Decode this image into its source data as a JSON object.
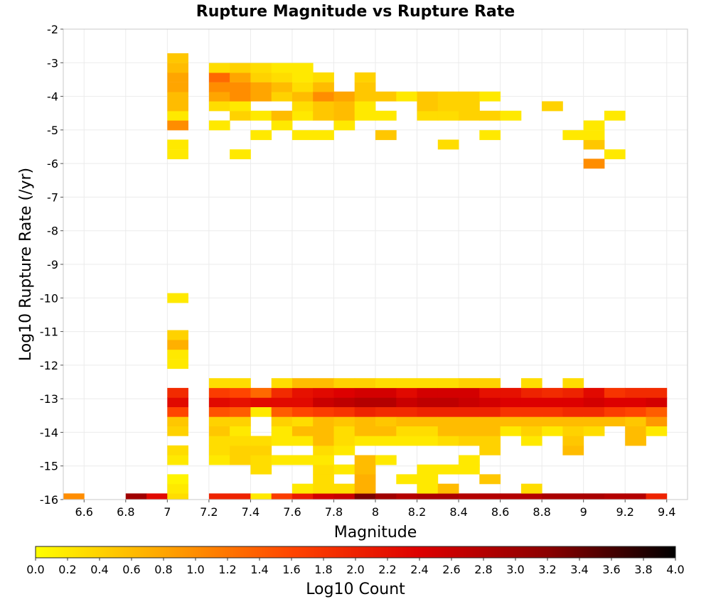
{
  "chart_data": {
    "type": "heatmap",
    "title": "Rupture Magnitude vs Rupture Rate",
    "xlabel": "Magnitude",
    "ylabel": "Log10 Rupture Rate (/yr)",
    "xlim": [
      6.5,
      9.5
    ],
    "ylim": [
      -16,
      -2
    ],
    "x_ticks": [
      "6.6",
      "6.8",
      "7",
      "7.2",
      "7.4",
      "7.6",
      "7.8",
      "8",
      "8.2",
      "8.4",
      "8.6",
      "8.8",
      "9",
      "9.2",
      "9.4"
    ],
    "y_ticks": [
      "-2",
      "-3",
      "-4",
      "-5",
      "-6",
      "-7",
      "-8",
      "-9",
      "-10",
      "-11",
      "-12",
      "-13",
      "-14",
      "-15",
      "-16"
    ],
    "x_bin_width": 0.1,
    "y_bin_height": 0.285,
    "grid": true,
    "colorbar": {
      "label": "Log10 Count",
      "range": [
        0.0,
        4.0
      ],
      "ticks": [
        "0.0",
        "0.2",
        "0.4",
        "0.6",
        "0.8",
        "1.0",
        "1.2",
        "1.4",
        "1.6",
        "1.8",
        "2.0",
        "2.2",
        "2.4",
        "2.6",
        "2.8",
        "3.0",
        "3.2",
        "3.4",
        "3.6",
        "3.8",
        "4.0"
      ],
      "placement": "bottom",
      "colormap": [
        "#ffff00",
        "#ffa500",
        "#ff4500",
        "#dd0000",
        "#8b0000",
        "#000000"
      ]
    },
    "cells": [
      [
        6.55,
        -15.96,
        1.0
      ],
      [
        6.85,
        -15.96,
        3.0
      ],
      [
        6.95,
        -15.96,
        2.3
      ],
      [
        7.05,
        -15.96,
        0.3
      ],
      [
        7.05,
        -15.67,
        0.2
      ],
      [
        7.05,
        -15.39,
        0.1
      ],
      [
        7.05,
        -14.82,
        0.2
      ],
      [
        7.05,
        -14.53,
        0.3
      ],
      [
        7.05,
        -13.96,
        0.4
      ],
      [
        7.05,
        -13.67,
        0.5
      ],
      [
        7.05,
        -13.39,
        1.6
      ],
      [
        7.05,
        -13.1,
        2.3
      ],
      [
        7.05,
        -12.82,
        1.9
      ],
      [
        7.05,
        -11.96,
        0.2
      ],
      [
        7.05,
        -11.67,
        0.2
      ],
      [
        7.05,
        -11.39,
        0.7
      ],
      [
        7.05,
        -11.1,
        0.4
      ],
      [
        7.05,
        -10.0,
        0.2
      ],
      [
        7.05,
        -5.72,
        0.2
      ],
      [
        7.05,
        -5.43,
        0.2
      ],
      [
        7.05,
        -4.86,
        1.0
      ],
      [
        7.05,
        -4.57,
        0.2
      ],
      [
        7.05,
        -4.29,
        0.6
      ],
      [
        7.05,
        -4.0,
        0.6
      ],
      [
        7.05,
        -3.72,
        0.8
      ],
      [
        7.05,
        -3.43,
        0.8
      ],
      [
        7.05,
        -3.15,
        0.6
      ],
      [
        7.05,
        -2.86,
        0.5
      ],
      [
        7.25,
        -15.96,
        2.0
      ],
      [
        7.25,
        -14.82,
        0.2
      ],
      [
        7.25,
        -14.53,
        0.3
      ],
      [
        7.25,
        -14.25,
        0.3
      ],
      [
        7.25,
        -13.96,
        0.5
      ],
      [
        7.25,
        -13.67,
        0.4
      ],
      [
        7.25,
        -13.39,
        1.5
      ],
      [
        7.25,
        -13.1,
        2.3
      ],
      [
        7.25,
        -12.82,
        1.7
      ],
      [
        7.25,
        -12.53,
        0.3
      ],
      [
        7.25,
        -4.86,
        0.2
      ],
      [
        7.25,
        -4.29,
        0.3
      ],
      [
        7.25,
        -4.0,
        0.8
      ],
      [
        7.25,
        -3.72,
        1.0
      ],
      [
        7.25,
        -3.43,
        1.3
      ],
      [
        7.25,
        -3.15,
        0.3
      ],
      [
        7.35,
        -15.96,
        2.0
      ],
      [
        7.35,
        -14.82,
        0.4
      ],
      [
        7.35,
        -14.53,
        0.4
      ],
      [
        7.35,
        -14.25,
        0.3
      ],
      [
        7.35,
        -13.96,
        0.2
      ],
      [
        7.35,
        -13.67,
        0.4
      ],
      [
        7.35,
        -13.39,
        1.4
      ],
      [
        7.35,
        -13.1,
        2.2
      ],
      [
        7.35,
        -12.82,
        1.6
      ],
      [
        7.35,
        -12.53,
        0.3
      ],
      [
        7.35,
        -5.72,
        0.2
      ],
      [
        7.35,
        -4.57,
        0.4
      ],
      [
        7.35,
        -4.29,
        0.2
      ],
      [
        7.35,
        -4.0,
        1.0
      ],
      [
        7.35,
        -3.72,
        1.0
      ],
      [
        7.35,
        -3.43,
        0.8
      ],
      [
        7.35,
        -3.15,
        0.4
      ],
      [
        7.45,
        -15.96,
        0.2
      ],
      [
        7.45,
        -15.1,
        0.3
      ],
      [
        7.45,
        -14.82,
        0.3
      ],
      [
        7.45,
        -14.53,
        0.4
      ],
      [
        7.45,
        -14.25,
        0.3
      ],
      [
        7.45,
        -13.39,
        0.2
      ],
      [
        7.45,
        -13.1,
        2.3
      ],
      [
        7.45,
        -12.82,
        1.3
      ],
      [
        7.45,
        -5.15,
        0.2
      ],
      [
        7.45,
        -4.57,
        0.2
      ],
      [
        7.45,
        -4.0,
        0.8
      ],
      [
        7.45,
        -3.72,
        0.8
      ],
      [
        7.45,
        -3.43,
        0.4
      ],
      [
        7.45,
        -3.15,
        0.3
      ],
      [
        7.55,
        -15.96,
        1.7
      ],
      [
        7.55,
        -14.82,
        0.2
      ],
      [
        7.55,
        -14.25,
        0.2
      ],
      [
        7.55,
        -13.96,
        0.2
      ],
      [
        7.55,
        -13.67,
        0.4
      ],
      [
        7.55,
        -13.39,
        1.4
      ],
      [
        7.55,
        -13.1,
        2.3
      ],
      [
        7.55,
        -12.82,
        1.9
      ],
      [
        7.55,
        -12.53,
        0.3
      ],
      [
        7.55,
        -4.86,
        0.2
      ],
      [
        7.55,
        -4.57,
        0.6
      ],
      [
        7.55,
        -4.0,
        0.4
      ],
      [
        7.55,
        -3.72,
        0.6
      ],
      [
        7.55,
        -3.43,
        0.3
      ],
      [
        7.55,
        -3.15,
        0.2
      ],
      [
        7.65,
        -15.96,
        2.1
      ],
      [
        7.65,
        -15.67,
        0.2
      ],
      [
        7.65,
        -14.82,
        0.2
      ],
      [
        7.65,
        -14.25,
        0.2
      ],
      [
        7.65,
        -13.96,
        0.6
      ],
      [
        7.65,
        -13.67,
        0.3
      ],
      [
        7.65,
        -13.39,
        1.6
      ],
      [
        7.65,
        -13.1,
        2.3
      ],
      [
        7.65,
        -12.82,
        2.2
      ],
      [
        7.65,
        -12.53,
        0.6
      ],
      [
        7.65,
        -5.15,
        0.2
      ],
      [
        7.65,
        -4.57,
        0.2
      ],
      [
        7.65,
        -4.29,
        0.3
      ],
      [
        7.65,
        -4.0,
        0.6
      ],
      [
        7.65,
        -3.72,
        0.3
      ],
      [
        7.65,
        -3.43,
        0.2
      ],
      [
        7.65,
        -3.15,
        0.2
      ],
      [
        7.75,
        -15.96,
        2.5
      ],
      [
        7.75,
        -15.67,
        0.3
      ],
      [
        7.75,
        -15.39,
        0.3
      ],
      [
        7.75,
        -15.1,
        0.3
      ],
      [
        7.75,
        -14.82,
        0.2
      ],
      [
        7.75,
        -14.53,
        0.3
      ],
      [
        7.75,
        -14.25,
        0.6
      ],
      [
        7.75,
        -13.96,
        0.6
      ],
      [
        7.75,
        -13.67,
        0.6
      ],
      [
        7.75,
        -13.39,
        1.7
      ],
      [
        7.75,
        -13.1,
        2.6
      ],
      [
        7.75,
        -12.82,
        2.3
      ],
      [
        7.75,
        -12.53,
        0.6
      ],
      [
        7.75,
        -5.15,
        0.2
      ],
      [
        7.75,
        -4.57,
        0.5
      ],
      [
        7.75,
        -4.29,
        0.5
      ],
      [
        7.75,
        -4.0,
        1.0
      ],
      [
        7.75,
        -3.72,
        0.6
      ],
      [
        7.75,
        -3.43,
        0.3
      ],
      [
        7.85,
        -15.96,
        2.6
      ],
      [
        7.85,
        -15.67,
        0.3
      ],
      [
        7.85,
        -15.1,
        0.2
      ],
      [
        7.85,
        -14.53,
        0.2
      ],
      [
        7.85,
        -14.25,
        0.3
      ],
      [
        7.85,
        -13.96,
        0.3
      ],
      [
        7.85,
        -13.67,
        0.5
      ],
      [
        7.85,
        -13.39,
        1.8
      ],
      [
        7.85,
        -13.1,
        2.7
      ],
      [
        7.85,
        -12.82,
        2.4
      ],
      [
        7.85,
        -12.53,
        0.4
      ],
      [
        7.85,
        -4.86,
        0.2
      ],
      [
        7.85,
        -4.57,
        0.6
      ],
      [
        7.85,
        -4.29,
        0.6
      ],
      [
        7.85,
        -4.0,
        0.8
      ],
      [
        7.95,
        -15.96,
        3.3
      ],
      [
        7.95,
        -15.67,
        0.7
      ],
      [
        7.95,
        -15.39,
        0.7
      ],
      [
        7.95,
        -15.1,
        0.6
      ],
      [
        7.95,
        -14.82,
        0.6
      ],
      [
        7.95,
        -14.25,
        0.2
      ],
      [
        7.95,
        -13.96,
        0.6
      ],
      [
        7.95,
        -13.67,
        0.6
      ],
      [
        7.95,
        -13.39,
        2.0
      ],
      [
        7.95,
        -13.1,
        2.8
      ],
      [
        7.95,
        -12.82,
        2.5
      ],
      [
        7.95,
        -12.53,
        0.4
      ],
      [
        7.95,
        -4.57,
        0.2
      ],
      [
        7.95,
        -4.29,
        0.2
      ],
      [
        7.95,
        -4.0,
        0.5
      ],
      [
        7.95,
        -3.72,
        0.5
      ],
      [
        7.95,
        -3.43,
        0.4
      ],
      [
        8.05,
        -15.96,
        3.0
      ],
      [
        8.05,
        -14.82,
        0.2
      ],
      [
        8.05,
        -14.25,
        0.2
      ],
      [
        8.05,
        -13.96,
        0.6
      ],
      [
        8.05,
        -13.67,
        0.5
      ],
      [
        8.05,
        -13.39,
        1.9
      ],
      [
        8.05,
        -13.1,
        2.8
      ],
      [
        8.05,
        -12.82,
        2.5
      ],
      [
        8.05,
        -12.53,
        0.3
      ],
      [
        8.05,
        -5.15,
        0.5
      ],
      [
        8.05,
        -4.57,
        0.2
      ],
      [
        8.05,
        -4.0,
        0.5
      ],
      [
        8.15,
        -15.96,
        2.8
      ],
      [
        8.15,
        -15.39,
        0.2
      ],
      [
        8.15,
        -14.25,
        0.2
      ],
      [
        8.15,
        -13.96,
        0.3
      ],
      [
        8.15,
        -13.67,
        0.6
      ],
      [
        8.15,
        -13.39,
        1.9
      ],
      [
        8.15,
        -13.1,
        2.6
      ],
      [
        8.15,
        -12.82,
        2.3
      ],
      [
        8.15,
        -12.53,
        0.3
      ],
      [
        8.15,
        -4.0,
        0.2
      ],
      [
        8.25,
        -15.96,
        2.9
      ],
      [
        8.25,
        -15.67,
        0.2
      ],
      [
        8.25,
        -15.39,
        0.2
      ],
      [
        8.25,
        -15.1,
        0.2
      ],
      [
        8.25,
        -14.25,
        0.2
      ],
      [
        8.25,
        -13.96,
        0.3
      ],
      [
        8.25,
        -13.67,
        0.6
      ],
      [
        8.25,
        -13.39,
        2.0
      ],
      [
        8.25,
        -13.1,
        2.7
      ],
      [
        8.25,
        -12.82,
        2.5
      ],
      [
        8.25,
        -12.53,
        0.3
      ],
      [
        8.25,
        -4.57,
        0.3
      ],
      [
        8.25,
        -4.29,
        0.5
      ],
      [
        8.25,
        -4.0,
        0.5
      ],
      [
        8.35,
        -15.96,
        2.9
      ],
      [
        8.35,
        -15.67,
        0.6
      ],
      [
        8.35,
        -15.1,
        0.2
      ],
      [
        8.35,
        -14.25,
        0.3
      ],
      [
        8.35,
        -13.96,
        0.6
      ],
      [
        8.35,
        -13.67,
        0.6
      ],
      [
        8.35,
        -13.39,
        2.0
      ],
      [
        8.35,
        -13.1,
        2.7
      ],
      [
        8.35,
        -12.82,
        2.5
      ],
      [
        8.35,
        -12.53,
        0.3
      ],
      [
        8.35,
        -5.43,
        0.3
      ],
      [
        8.35,
        -4.57,
        0.3
      ],
      [
        8.35,
        -4.29,
        0.4
      ],
      [
        8.35,
        -4.0,
        0.4
      ],
      [
        8.45,
        -15.96,
        2.8
      ],
      [
        8.45,
        -15.1,
        0.2
      ],
      [
        8.45,
        -14.82,
        0.2
      ],
      [
        8.45,
        -14.25,
        0.4
      ],
      [
        8.45,
        -13.96,
        0.6
      ],
      [
        8.45,
        -13.67,
        0.6
      ],
      [
        8.45,
        -13.39,
        2.0
      ],
      [
        8.45,
        -13.1,
        2.6
      ],
      [
        8.45,
        -12.82,
        2.5
      ],
      [
        8.45,
        -12.53,
        0.4
      ],
      [
        8.45,
        -4.57,
        0.4
      ],
      [
        8.45,
        -4.29,
        0.4
      ],
      [
        8.45,
        -4.0,
        0.4
      ],
      [
        8.55,
        -15.96,
        2.8
      ],
      [
        8.55,
        -15.39,
        0.5
      ],
      [
        8.55,
        -14.53,
        0.4
      ],
      [
        8.55,
        -14.25,
        0.4
      ],
      [
        8.55,
        -13.96,
        0.6
      ],
      [
        8.55,
        -13.67,
        0.6
      ],
      [
        8.55,
        -13.39,
        2.0
      ],
      [
        8.55,
        -13.1,
        2.5
      ],
      [
        8.55,
        -12.82,
        2.2
      ],
      [
        8.55,
        -12.53,
        0.4
      ],
      [
        8.55,
        -5.15,
        0.2
      ],
      [
        8.55,
        -4.57,
        0.4
      ],
      [
        8.55,
        -4.0,
        0.2
      ],
      [
        8.65,
        -15.96,
        2.8
      ],
      [
        8.65,
        -13.96,
        0.2
      ],
      [
        8.65,
        -13.67,
        0.6
      ],
      [
        8.65,
        -13.39,
        1.8
      ],
      [
        8.65,
        -13.1,
        2.4
      ],
      [
        8.65,
        -12.82,
        2.2
      ],
      [
        8.65,
        -4.57,
        0.2
      ],
      [
        8.75,
        -15.96,
        2.8
      ],
      [
        8.75,
        -15.67,
        0.3
      ],
      [
        8.75,
        -14.25,
        0.2
      ],
      [
        8.75,
        -13.96,
        0.4
      ],
      [
        8.75,
        -13.67,
        0.6
      ],
      [
        8.75,
        -13.39,
        1.8
      ],
      [
        8.75,
        -13.1,
        2.4
      ],
      [
        8.75,
        -12.82,
        2.0
      ],
      [
        8.75,
        -12.53,
        0.3
      ],
      [
        8.85,
        -15.96,
        2.9
      ],
      [
        8.85,
        -13.96,
        0.2
      ],
      [
        8.85,
        -13.67,
        0.6
      ],
      [
        8.85,
        -13.39,
        1.8
      ],
      [
        8.85,
        -13.1,
        2.4
      ],
      [
        8.85,
        -12.82,
        1.9
      ],
      [
        8.85,
        -4.29,
        0.4
      ],
      [
        8.95,
        -15.96,
        2.9
      ],
      [
        8.95,
        -14.53,
        0.6
      ],
      [
        8.95,
        -14.25,
        0.5
      ],
      [
        8.95,
        -13.96,
        0.4
      ],
      [
        8.95,
        -13.67,
        0.6
      ],
      [
        8.95,
        -13.39,
        1.9
      ],
      [
        8.95,
        -13.1,
        2.4
      ],
      [
        8.95,
        -12.82,
        2.0
      ],
      [
        8.95,
        -12.53,
        0.3
      ],
      [
        8.95,
        -5.15,
        0.2
      ],
      [
        9.05,
        -15.96,
        2.9
      ],
      [
        9.05,
        -13.96,
        0.3
      ],
      [
        9.05,
        -13.67,
        0.6
      ],
      [
        9.05,
        -13.39,
        1.9
      ],
      [
        9.05,
        -13.1,
        2.5
      ],
      [
        9.05,
        -12.82,
        2.3
      ],
      [
        9.05,
        -6.0,
        1.0
      ],
      [
        9.05,
        -5.43,
        0.5
      ],
      [
        9.05,
        -5.15,
        0.2
      ],
      [
        9.05,
        -4.86,
        0.2
      ],
      [
        9.15,
        -15.96,
        2.8
      ],
      [
        9.15,
        -13.67,
        0.6
      ],
      [
        9.15,
        -13.39,
        1.7
      ],
      [
        9.15,
        -13.1,
        2.4
      ],
      [
        9.15,
        -12.82,
        1.8
      ],
      [
        9.15,
        -5.72,
        0.2
      ],
      [
        9.15,
        -4.57,
        0.2
      ],
      [
        9.25,
        -15.96,
        2.8
      ],
      [
        9.25,
        -14.25,
        0.6
      ],
      [
        9.25,
        -13.96,
        0.6
      ],
      [
        9.25,
        -13.67,
        0.5
      ],
      [
        9.25,
        -13.39,
        1.6
      ],
      [
        9.25,
        -13.1,
        2.4
      ],
      [
        9.25,
        -12.82,
        1.9
      ],
      [
        9.35,
        -15.96,
        2.0
      ],
      [
        9.35,
        -13.96,
        0.2
      ],
      [
        9.35,
        -13.67,
        0.9
      ],
      [
        9.35,
        -13.39,
        1.4
      ],
      [
        9.35,
        -13.1,
        2.5
      ],
      [
        9.35,
        -12.82,
        1.9
      ]
    ]
  }
}
